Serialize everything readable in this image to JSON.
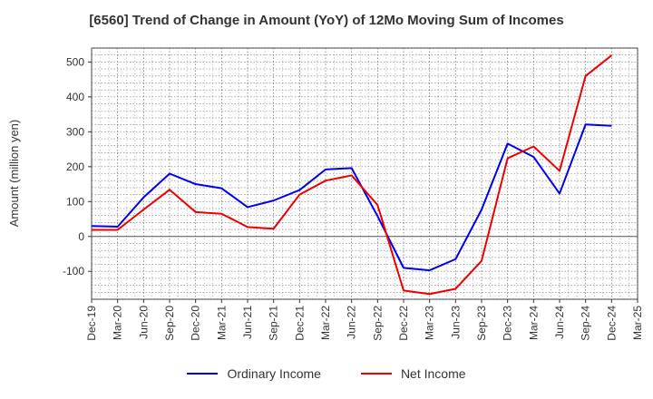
{
  "chart_data": {
    "type": "line",
    "title": "[6560]  Trend of Change in Amount (YoY) of 12Mo Moving Sum of Incomes",
    "xlabel": "",
    "ylabel": "Amount (million yen)",
    "categories": [
      "Dec-19",
      "Mar-20",
      "Jun-20",
      "Sep-20",
      "Dec-20",
      "Mar-21",
      "Jun-21",
      "Sep-21",
      "Dec-21",
      "Mar-22",
      "Jun-22",
      "Sep-22",
      "Dec-22",
      "Mar-23",
      "Jun-23",
      "Sep-23",
      "Dec-23",
      "Mar-24",
      "Jun-24",
      "Sep-24",
      "Dec-24",
      "Mar-25"
    ],
    "ylim": [
      -180,
      540
    ],
    "yticks": [
      -100,
      0,
      100,
      200,
      300,
      400,
      500
    ],
    "grid": true,
    "legend_position": "bottom",
    "series": [
      {
        "name": "Ordinary Income",
        "color": "#0000ee",
        "values": [
          30,
          28,
          112,
          180,
          150,
          138,
          84,
          103,
          133,
          192,
          196,
          58,
          -90,
          -97,
          -65,
          77,
          266,
          228,
          123,
          321,
          317,
          null
        ]
      },
      {
        "name": "Net Income",
        "color": "#ee0000",
        "values": [
          19,
          19,
          77,
          134,
          70,
          65,
          27,
          22,
          120,
          160,
          175,
          90,
          -155,
          -165,
          -150,
          -70,
          224,
          258,
          188,
          460,
          519,
          null
        ]
      }
    ]
  }
}
